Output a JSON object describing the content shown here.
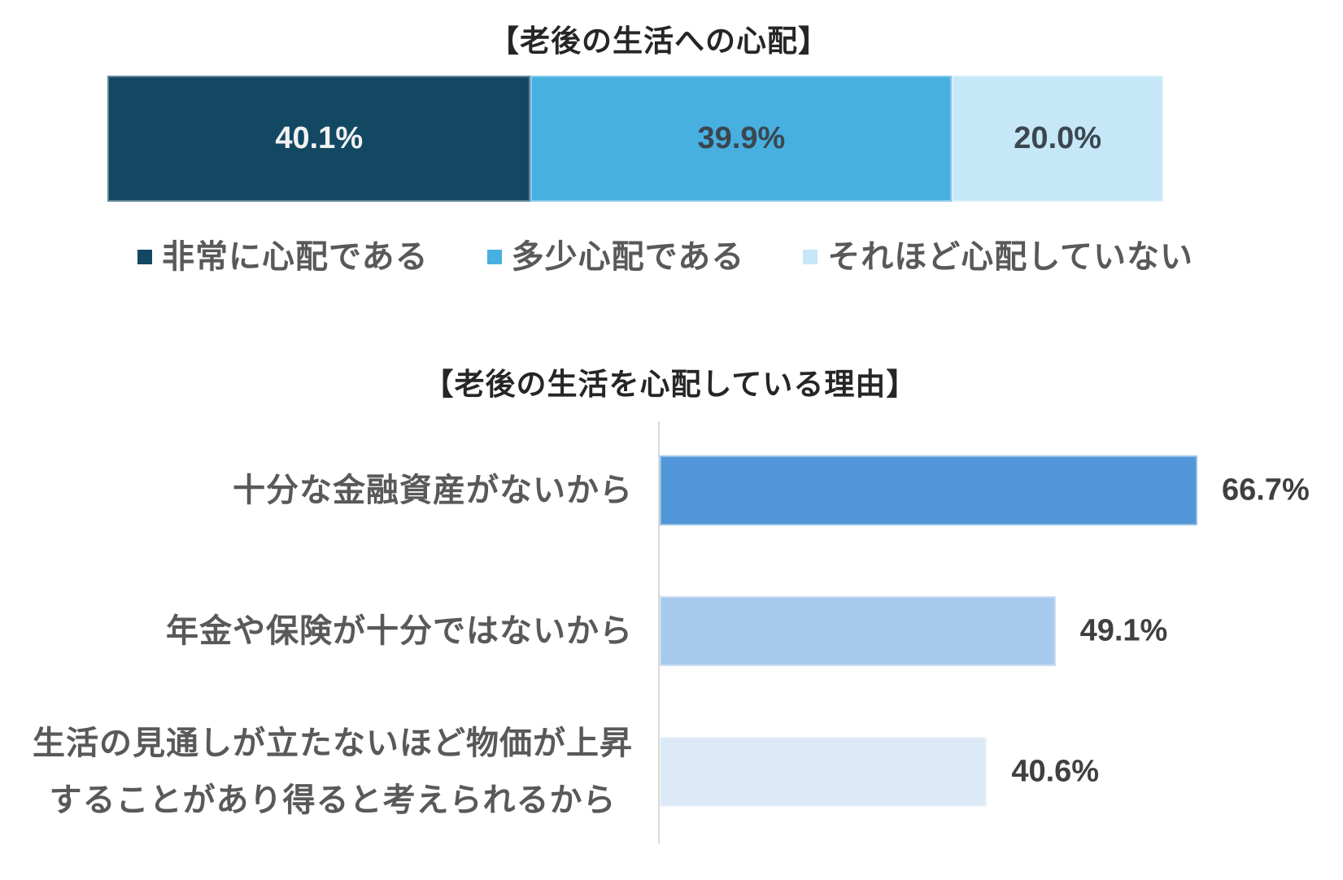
{
  "chart_data": [
    {
      "type": "bar",
      "orientation": "horizontal",
      "stacked": true,
      "title": "【老後の生活への心配】",
      "legend": "bottom",
      "grid": false,
      "series": [
        {
          "name": "非常に心配である",
          "values": [
            40.1
          ],
          "data_label": "40.1%",
          "color": "#124862",
          "label_color": "#f2f2f2"
        },
        {
          "name": "多少心配である",
          "values": [
            39.9
          ],
          "data_label": "39.9%",
          "color": "#47b0e0",
          "label_color": "#3b4650"
        },
        {
          "name": "それほど心配していない",
          "values": [
            20.0
          ],
          "data_label": "20.0%",
          "color": "#c5e7f7",
          "label_color": "#3b4650"
        }
      ]
    },
    {
      "type": "bar",
      "orientation": "horizontal",
      "title": "【老後の生活を心配している理由】",
      "grid": false,
      "categories": [
        "十分な金融資産がないから",
        "年金や保険が十分ではないから",
        "生活の見通しが立たないほど物価が上昇\nすることがあり得ると考えられるから"
      ],
      "values": [
        66.7,
        49.1,
        40.6
      ],
      "data_labels": [
        "66.7%",
        "49.1%",
        "40.6%"
      ],
      "colors": [
        "#5196d8",
        "#a7c9ec",
        "#dce9f6"
      ]
    }
  ]
}
